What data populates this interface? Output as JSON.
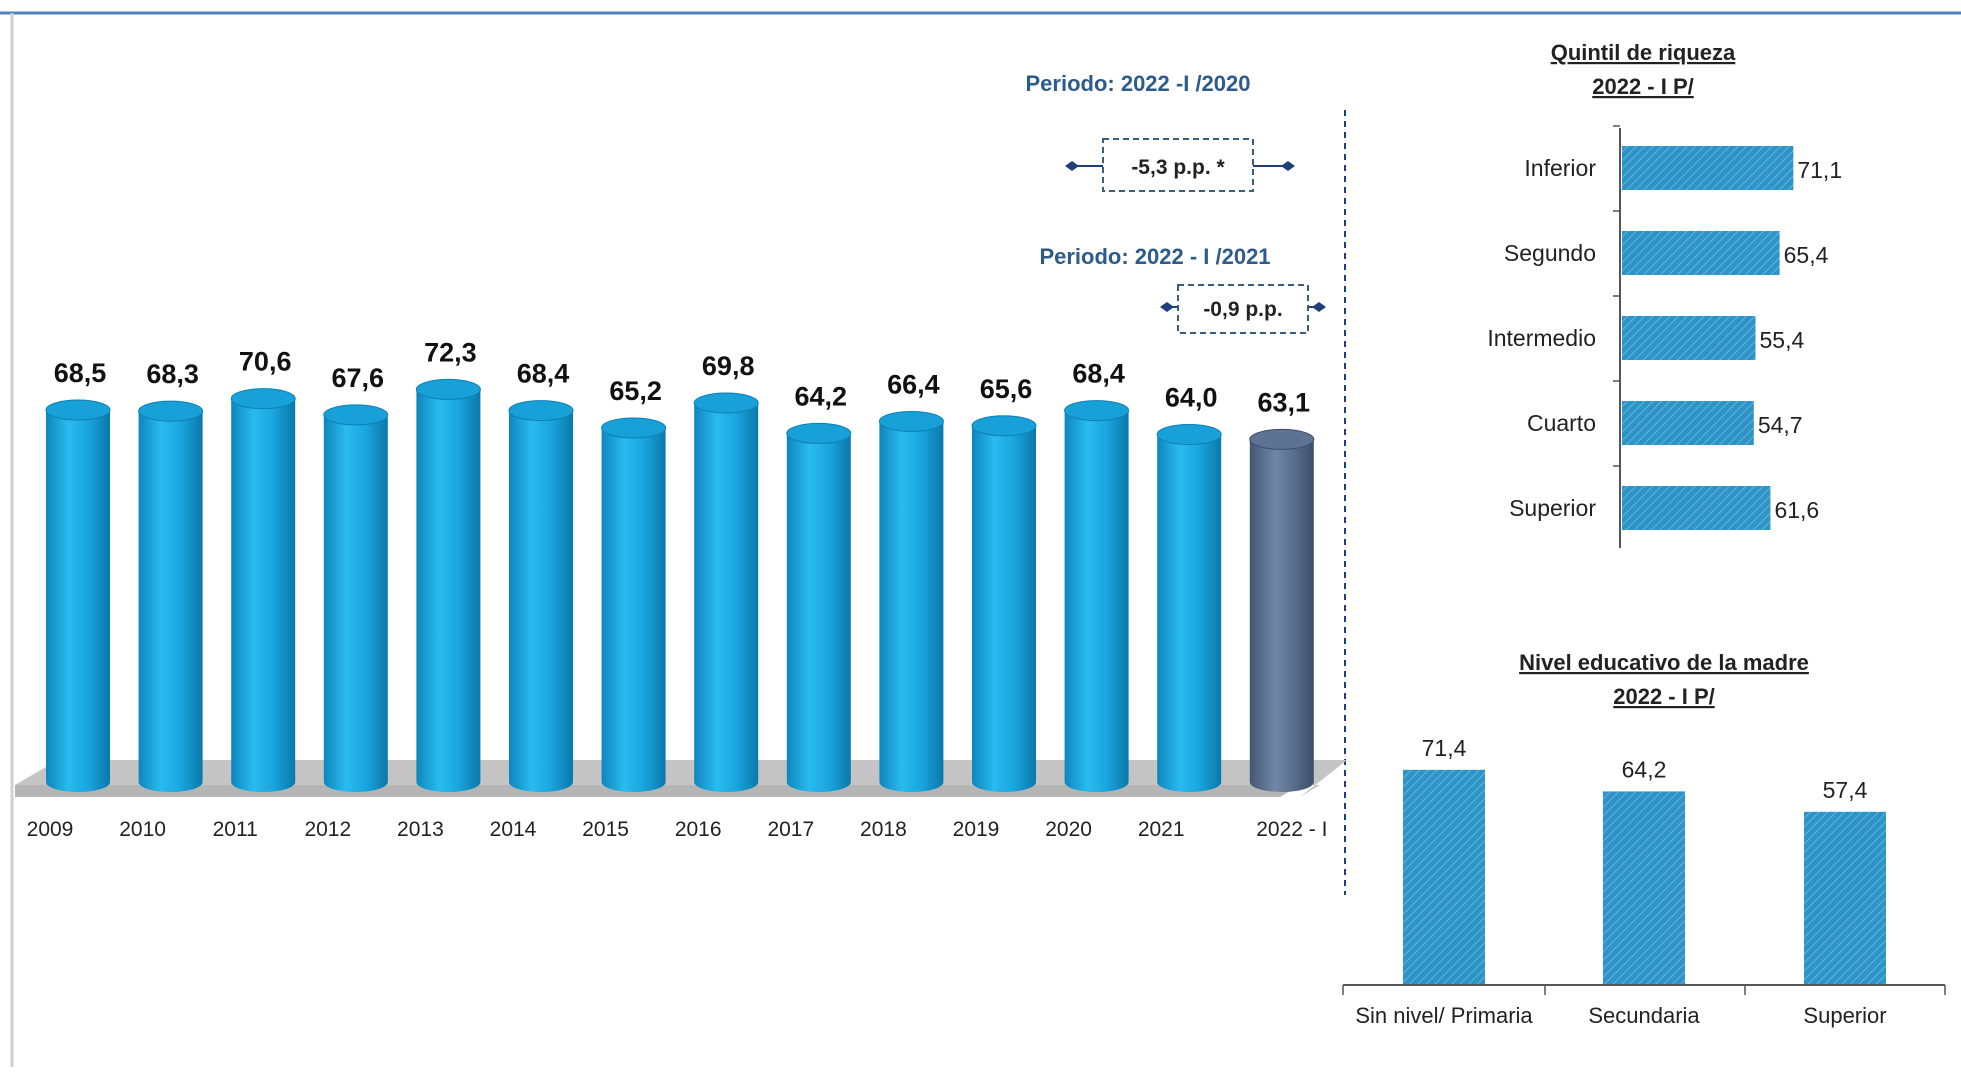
{
  "chart_data": [
    {
      "type": "bar",
      "categories": [
        "2009",
        "2010",
        "2011",
        "2012",
        "2013",
        "2014",
        "2015",
        "2016",
        "2017",
        "2018",
        "2019",
        "2020",
        "2021",
        "2022 - I"
      ],
      "values": [
        68.5,
        68.3,
        70.6,
        67.6,
        72.3,
        68.4,
        65.2,
        69.8,
        64.2,
        66.4,
        65.6,
        68.4,
        64.0,
        63.1
      ],
      "value_labels": [
        "68,5",
        "68,3",
        "70,6",
        "67,6",
        "72,3",
        "68,4",
        "65,2",
        "69,8",
        "64,2",
        "66,4",
        "65,6",
        "68,4",
        "64,0",
        "63,1"
      ],
      "ylim": [
        0,
        80
      ],
      "legend": "none",
      "grid": false,
      "annotations": [
        {
          "title": "Periodo: 2022 -I /2020",
          "label": "-5,3 p.p. *"
        },
        {
          "title": "Periodo: 2022 - I /2021",
          "label": "-0,9 p.p."
        }
      ],
      "colors": {
        "bar": "#1aa6de",
        "highlight": "#5b7090",
        "floor": "#bdbdbd"
      }
    },
    {
      "type": "bar",
      "orientation": "horizontal",
      "title": "Quintil de riqueza",
      "subtitle": "2022 - I P/",
      "categories": [
        "Inferior",
        "Segundo",
        "Intermedio",
        "Cuarto",
        "Superior"
      ],
      "values": [
        71.1,
        65.4,
        55.4,
        54.7,
        61.6
      ],
      "value_labels": [
        "71,1",
        "65,4",
        "55,4",
        "54,7",
        "61,6"
      ],
      "xlim": [
        0,
        80
      ],
      "colors": {
        "bar": "#2e93c7"
      }
    },
    {
      "type": "bar",
      "title": "Nivel educativo de la madre",
      "subtitle": "2022 - I P/",
      "categories": [
        "Sin nivel/ Primaria",
        "Secundaria",
        "Superior"
      ],
      "values": [
        71.4,
        64.2,
        57.4
      ],
      "value_labels": [
        "71,4",
        "64,2",
        "57,4"
      ],
      "ylim": [
        0,
        80
      ],
      "colors": {
        "bar": "#2e93c7"
      }
    }
  ]
}
